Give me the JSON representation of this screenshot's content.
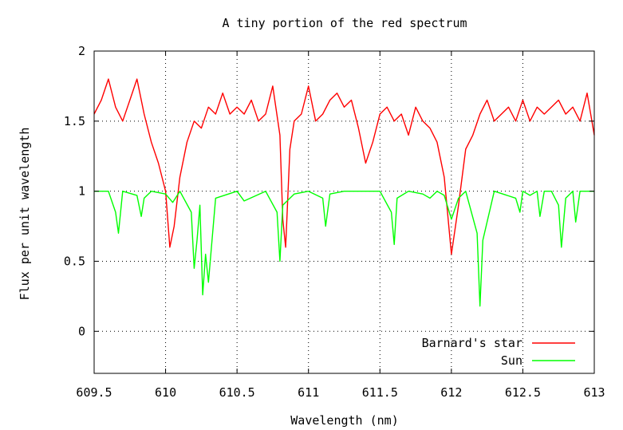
{
  "chart_data": {
    "type": "line",
    "title": "A tiny portion of the red spectrum",
    "xlabel": "Wavelength (nm)",
    "ylabel": "Flux per unit wavelength",
    "xlim": [
      609.5,
      613
    ],
    "ylim": [
      -0.3,
      2
    ],
    "x_ticks": [
      609.5,
      610,
      610.5,
      611,
      611.5,
      612,
      612.5,
      613
    ],
    "x_tick_labels": [
      "609.5",
      "610",
      "610.5",
      "611",
      "611.5",
      "612",
      "612.5",
      "613"
    ],
    "y_ticks": [
      0,
      0.5,
      1,
      1.5,
      2
    ],
    "y_tick_labels": [
      "0",
      "0.5",
      "1",
      "1.5",
      "2"
    ],
    "grid": true,
    "legend_position": "bottom-right",
    "series": [
      {
        "name": "Barnard's star",
        "color": "#ff0000",
        "x": [
          609.5,
          609.55,
          609.6,
          609.65,
          609.7,
          609.75,
          609.8,
          609.85,
          609.9,
          609.95,
          610.0,
          610.03,
          610.06,
          610.1,
          610.15,
          610.2,
          610.25,
          610.3,
          610.35,
          610.4,
          610.45,
          610.5,
          610.55,
          610.6,
          610.65,
          610.7,
          610.75,
          610.8,
          610.82,
          610.84,
          610.87,
          610.9,
          610.95,
          611.0,
          611.05,
          611.1,
          611.15,
          611.2,
          611.25,
          611.3,
          611.35,
          611.4,
          611.45,
          611.5,
          611.55,
          611.6,
          611.65,
          611.7,
          611.75,
          611.8,
          611.85,
          611.9,
          611.95,
          612.0,
          612.05,
          612.1,
          612.15,
          612.2,
          612.25,
          612.3,
          612.35,
          612.4,
          612.45,
          612.5,
          612.55,
          612.6,
          612.65,
          612.7,
          612.75,
          612.8,
          612.85,
          612.9,
          612.95,
          613.0
        ],
        "y": [
          1.55,
          1.65,
          1.8,
          1.6,
          1.5,
          1.65,
          1.8,
          1.55,
          1.35,
          1.2,
          1.0,
          0.6,
          0.75,
          1.1,
          1.35,
          1.5,
          1.45,
          1.6,
          1.55,
          1.7,
          1.55,
          1.6,
          1.55,
          1.65,
          1.5,
          1.55,
          1.75,
          1.4,
          0.8,
          0.6,
          1.3,
          1.5,
          1.55,
          1.75,
          1.5,
          1.55,
          1.65,
          1.7,
          1.6,
          1.65,
          1.45,
          1.2,
          1.35,
          1.55,
          1.6,
          1.5,
          1.55,
          1.4,
          1.6,
          1.5,
          1.45,
          1.35,
          1.1,
          0.55,
          0.9,
          1.3,
          1.4,
          1.55,
          1.65,
          1.5,
          1.55,
          1.6,
          1.5,
          1.65,
          1.5,
          1.6,
          1.55,
          1.6,
          1.65,
          1.55,
          1.6,
          1.5,
          1.7,
          1.4
        ]
      },
      {
        "name": "Sun",
        "color": "#00ff00",
        "x": [
          609.5,
          609.6,
          609.65,
          609.67,
          609.7,
          609.8,
          609.83,
          609.85,
          609.9,
          610.0,
          610.05,
          610.1,
          610.18,
          610.2,
          610.22,
          610.24,
          610.26,
          610.28,
          610.3,
          610.35,
          610.5,
          610.55,
          610.7,
          610.78,
          610.8,
          610.82,
          610.9,
          611.0,
          611.1,
          611.12,
          611.15,
          611.25,
          611.4,
          611.5,
          611.58,
          611.6,
          611.62,
          611.7,
          611.8,
          611.85,
          611.9,
          611.95,
          612.0,
          612.05,
          612.1,
          612.18,
          612.2,
          612.22,
          612.3,
          612.45,
          612.48,
          612.5,
          612.55,
          612.6,
          612.62,
          612.65,
          612.7,
          612.75,
          612.77,
          612.8,
          612.85,
          612.87,
          612.9,
          613.0
        ],
        "y": [
          1.0,
          1.0,
          0.85,
          0.7,
          1.0,
          0.97,
          0.82,
          0.95,
          1.0,
          0.98,
          0.92,
          1.0,
          0.85,
          0.45,
          0.65,
          0.9,
          0.26,
          0.55,
          0.35,
          0.95,
          1.0,
          0.93,
          1.0,
          0.85,
          0.5,
          0.9,
          0.98,
          1.0,
          0.95,
          0.75,
          0.98,
          1.0,
          1.0,
          1.0,
          0.85,
          0.62,
          0.95,
          1.0,
          0.98,
          0.95,
          1.0,
          0.97,
          0.8,
          0.95,
          1.0,
          0.7,
          0.18,
          0.65,
          1.0,
          0.95,
          0.85,
          1.0,
          0.97,
          1.0,
          0.82,
          1.0,
          1.0,
          0.9,
          0.6,
          0.95,
          1.0,
          0.78,
          1.0,
          1.0
        ]
      }
    ]
  }
}
